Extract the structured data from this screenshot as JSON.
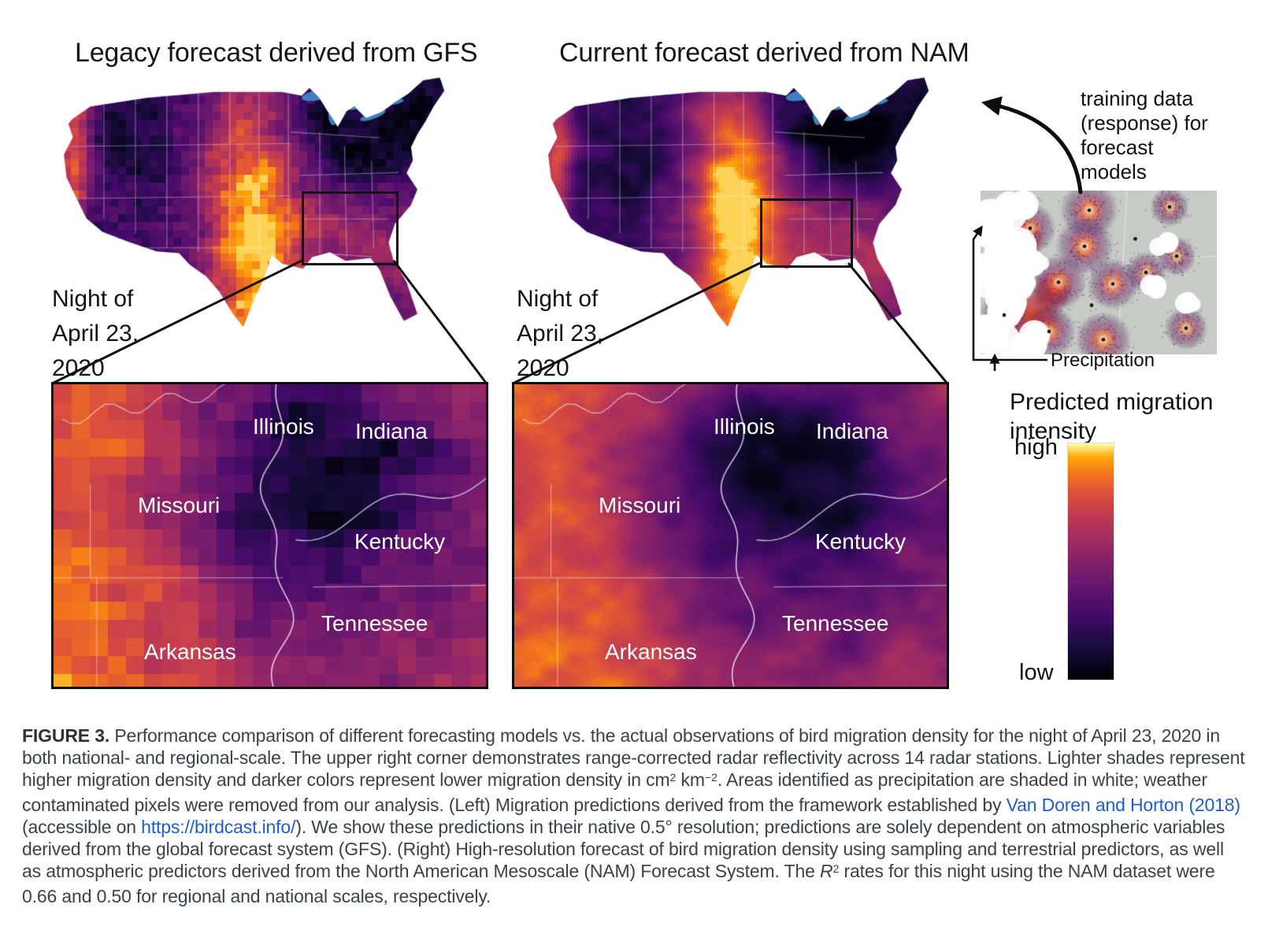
{
  "panels": {
    "left": {
      "title": "Legacy forecast derived from GFS",
      "date_lines": [
        "Night of",
        "April 23,",
        "2020"
      ]
    },
    "right": {
      "title": "Current forecast derived from NAM",
      "date_lines": [
        "Night of",
        "April 23,",
        "2020"
      ]
    }
  },
  "annotations": {
    "training_lines": [
      "training data",
      "(response) for",
      "forecast",
      "models"
    ],
    "precipitation": "Precipitation"
  },
  "insets": {
    "state_labels": [
      {
        "name": "Illinois"
      },
      {
        "name": "Indiana"
      },
      {
        "name": "Missouri"
      },
      {
        "name": "Kentucky"
      },
      {
        "name": "Tennessee"
      },
      {
        "name": "Arkansas"
      }
    ]
  },
  "legend": {
    "title_lines": [
      "Predicted migration",
      "intensity"
    ],
    "high": "high",
    "low": "low",
    "colormap": [
      {
        "t": 0.0,
        "color": "#000004"
      },
      {
        "t": 0.13,
        "color": "#160b39"
      },
      {
        "t": 0.27,
        "color": "#420a68"
      },
      {
        "t": 0.41,
        "color": "#6a176e"
      },
      {
        "t": 0.55,
        "color": "#932667"
      },
      {
        "t": 0.68,
        "color": "#bc3754"
      },
      {
        "t": 0.79,
        "color": "#dd513a"
      },
      {
        "t": 0.87,
        "color": "#f3761b"
      },
      {
        "t": 0.94,
        "color": "#fca50a"
      },
      {
        "t": 1.0,
        "color": "#fcffa4"
      }
    ]
  },
  "colors": {
    "lake_blue": "#3d80c2",
    "radar_background": "#c7cbc5",
    "link_blue": "#1d5cd6"
  },
  "caption": {
    "segments": [
      {
        "text": "FIGURE 3."
      },
      {
        "text": " Performance comparison of different forecasting models vs. the actual observations of bird migration density for the night of April 23, 2020 in both national- and regional-scale. The upper right corner demonstrates range-corrected radar reflectivity across 14 radar stations. Lighter shades represent higher migration density and darker colors represent lower migration density in cm"
      },
      {
        "text": "2"
      },
      {
        "text": " km"
      },
      {
        "text": "−2"
      },
      {
        "text": ". Areas identified as precipitation are shaded in white; weather contaminated pixels were removed from our analysis. (Left) Migration predictions derived from the framework established by "
      },
      {
        "text": "Van Doren and Horton (2018)"
      },
      {
        "text": " (accessible on "
      },
      {
        "text": "https://birdcast.info/"
      },
      {
        "text": "). We show these predictions in their native 0.5° resolution; predictions are solely dependent on atmospheric variables derived from the global forecast system (GFS). (Right) High-resolution forecast of bird migration density using sampling and terrestrial predictors, as well as atmospheric predictors derived from the North American Mesoscale (NAM) Forecast System. The "
      },
      {
        "text": "R"
      },
      {
        "text": "2"
      },
      {
        "text": " rates for this night using the NAM dataset were 0.66 and 0.50 for regional and national scales, respectively."
      }
    ]
  }
}
